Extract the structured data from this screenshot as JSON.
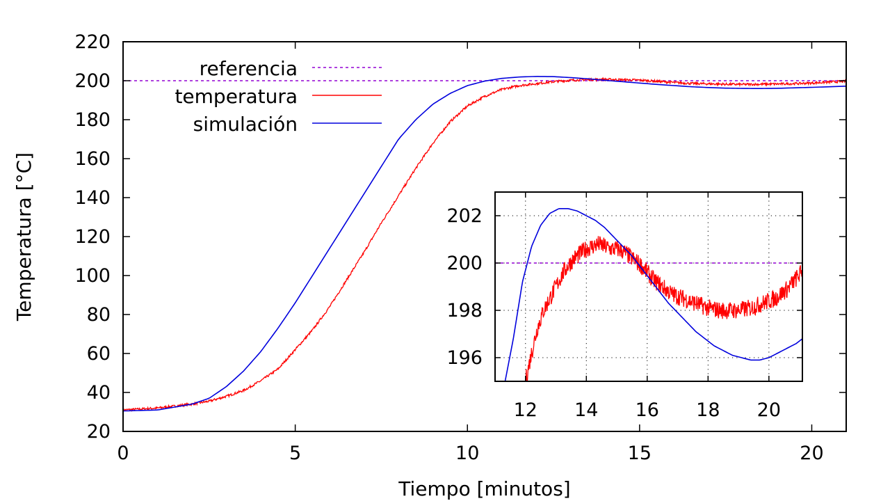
{
  "colors": {
    "referencia": "#9400D3",
    "temperatura": "#FF0000",
    "simulacion": "#0000DD",
    "axes": "#000000",
    "background": "#FFFFFF"
  },
  "chart_data": [
    {
      "type": "line",
      "title": "",
      "xlabel": "Tiempo [minutos]",
      "ylabel": "Temperatura [°C]",
      "xlim": [
        0,
        21
      ],
      "ylim": [
        20,
        220
      ],
      "x_ticks": [
        0,
        5,
        10,
        15,
        20
      ],
      "y_ticks": [
        20,
        40,
        60,
        80,
        100,
        120,
        140,
        160,
        180,
        200,
        220
      ],
      "grid": false,
      "legend_position": "top-left",
      "series": [
        {
          "name": "referencia",
          "style": "dashed",
          "x": [
            0,
            21
          ],
          "y": [
            200,
            200
          ]
        },
        {
          "name": "temperatura",
          "style": "solid-noisy",
          "x": [
            0,
            1,
            2,
            2.5,
            3,
            3.5,
            4,
            4.5,
            5,
            5.5,
            6,
            6.5,
            7,
            7.5,
            8,
            8.5,
            9,
            9.5,
            10,
            10.5,
            11,
            11.5,
            12,
            12.5,
            13,
            13.5,
            14,
            14.5,
            15,
            15.5,
            16,
            16.5,
            17,
            17.5,
            18,
            18.5,
            19,
            19.5,
            20,
            20.5,
            21
          ],
          "y": [
            31,
            32,
            34,
            35.5,
            38,
            41,
            46,
            52,
            62,
            72,
            84,
            98,
            112,
            127,
            141,
            155,
            168,
            179,
            187,
            192,
            195.5,
            197.5,
            198.5,
            199.5,
            200.2,
            200.6,
            200.7,
            200.5,
            200.3,
            199.7,
            199.1,
            198.6,
            198.4,
            198.2,
            198.1,
            198.2,
            198.3,
            198.5,
            198.8,
            199.3,
            199.7
          ]
        },
        {
          "name": "simulación",
          "style": "solid",
          "x": [
            0,
            1,
            2,
            2.5,
            3,
            3.5,
            4,
            4.5,
            5,
            5.5,
            6,
            6.5,
            7,
            7.5,
            8,
            8.5,
            9,
            9.5,
            10,
            10.5,
            11,
            11.5,
            12,
            12.5,
            13,
            13.5,
            14,
            14.5,
            15,
            15.5,
            16,
            16.5,
            17,
            17.5,
            18,
            18.5,
            19,
            19.5,
            20,
            20.5,
            21
          ],
          "y": [
            30.5,
            31,
            34,
            37,
            43,
            51,
            61,
            73,
            86,
            100,
            114,
            128,
            142,
            156,
            170,
            180,
            188,
            193.5,
            197.5,
            199.8,
            201.2,
            201.9,
            202.2,
            202.1,
            201.6,
            201,
            200.2,
            199.5,
            198.8,
            198.1,
            197.5,
            196.9,
            196.5,
            196.2,
            196.05,
            196.0,
            196.1,
            196.35,
            196.6,
            196.9,
            197.2
          ]
        }
      ]
    },
    {
      "type": "line",
      "title": "",
      "xlabel": "",
      "ylabel": "",
      "xlim": [
        11,
        21.1
      ],
      "ylim": [
        195,
        203
      ],
      "x_ticks": [
        12,
        14,
        16,
        18,
        20
      ],
      "y_ticks": [
        196,
        198,
        200,
        202
      ],
      "grid": true,
      "series": [
        {
          "name": "referencia",
          "style": "dashed",
          "x": [
            11,
            21.1
          ],
          "y": [
            200,
            200
          ]
        },
        {
          "name": "temperatura",
          "style": "solid-noisy",
          "x": [
            12,
            12.2,
            12.4,
            12.6,
            12.8,
            13,
            13.2,
            13.4,
            13.6,
            13.8,
            14,
            14.2,
            14.4,
            14.6,
            14.8,
            15,
            15.2,
            15.4,
            15.6,
            15.8,
            16,
            16.2,
            16.4,
            16.6,
            16.8,
            17,
            17.2,
            17.4,
            17.6,
            17.8,
            18,
            18.2,
            18.4,
            18.6,
            18.8,
            19,
            19.2,
            19.4,
            19.6,
            19.8,
            20,
            20.2,
            20.4,
            20.6,
            20.8,
            21,
            21.1
          ],
          "y": [
            195,
            196.2,
            197.3,
            198,
            198.5,
            199,
            199.5,
            199.9,
            200.2,
            200.4,
            200.6,
            200.7,
            200.8,
            200.7,
            200.6,
            200.6,
            200.5,
            200.3,
            200.1,
            199.9,
            199.6,
            199.3,
            199.1,
            198.9,
            198.7,
            198.6,
            198.5,
            198.4,
            198.3,
            198.2,
            198.1,
            198.05,
            198.0,
            198.0,
            198.0,
            198.0,
            198.05,
            198.1,
            198.2,
            198.3,
            198.4,
            198.5,
            198.7,
            198.9,
            199.2,
            199.5,
            199.7
          ]
        },
        {
          "name": "simulación",
          "style": "solid",
          "x": [
            11,
            11.3,
            11.6,
            11.9,
            12.2,
            12.5,
            12.8,
            13.1,
            13.4,
            13.7,
            14,
            14.3,
            14.6,
            14.9,
            15.2,
            15.5,
            15.8,
            16.1,
            16.4,
            16.7,
            17,
            17.3,
            17.6,
            17.9,
            18.2,
            18.5,
            18.8,
            19.1,
            19.4,
            19.7,
            20,
            20.3,
            20.6,
            20.9,
            21.1
          ],
          "y": [
            193,
            194.8,
            196.8,
            199.2,
            200.7,
            201.6,
            202.1,
            202.3,
            202.3,
            202.2,
            202.0,
            201.8,
            201.5,
            201.1,
            200.7,
            200.3,
            199.8,
            199.3,
            198.8,
            198.3,
            197.9,
            197.5,
            197.1,
            196.8,
            196.5,
            196.3,
            196.1,
            196.0,
            195.9,
            195.9,
            196.0,
            196.2,
            196.4,
            196.6,
            196.8
          ]
        }
      ]
    }
  ]
}
